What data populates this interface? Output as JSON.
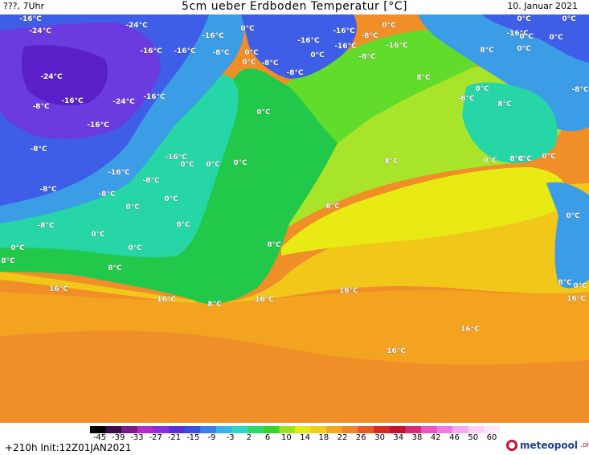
{
  "header": {
    "left": "???, 7Uhr",
    "title": "5cm ueber Erdboden Temperatur [°C]",
    "date": "10. Januar 2021"
  },
  "map": {
    "labels": [
      "-16°C",
      "-24°C",
      "-24°C",
      "-16°C",
      "-16°C",
      "0°C",
      "-16°C",
      "-16°C",
      "0°C",
      "-8°C",
      "-16°C",
      "0°C",
      "-16°C",
      "-16°C",
      "-8°C",
      "0°C",
      "-8°C",
      "0°C",
      "-8°C",
      "-16°C",
      "8°C",
      "0°C",
      "0°C",
      "-24°C",
      "-16°C",
      "-24°C",
      "-8°C",
      "-8°C",
      "0°C",
      "0°C",
      "8°C",
      "-8°C",
      "-8°C",
      "0°C",
      "0°C",
      "-16°C",
      "-16°C",
      "0°C",
      "8°C",
      "-8°C",
      "-16°C",
      "-16°C",
      "-8°C",
      "0°C",
      "0°C",
      "8°C",
      "0°C",
      "0°C",
      "-8°C",
      "0°C",
      "0°C",
      "-8°C",
      "8°C",
      "0°C",
      "-8°C",
      "0°C",
      "0°C",
      "0°C",
      "0°C",
      "8°C",
      "8°C",
      "8°C",
      "16°C",
      "16°C",
      "8°C",
      "16°C",
      "16°C",
      "8°C",
      "0°C",
      "16°C",
      "16°C",
      "16°C",
      "0°C",
      "8°C",
      "0°C"
    ],
    "colors": {
      "deep_purple": "#5a1fc8",
      "violet": "#6c3be0",
      "blue": "#3f5ee8",
      "light_blue": "#3b9de6",
      "cyan": "#2fd0d4",
      "teal": "#27d6a6",
      "green": "#22c84a",
      "light_green": "#62dc2a",
      "lime": "#a8e52a",
      "yellow": "#e9ea14",
      "gold": "#f1c719",
      "orange": "#f3a320",
      "dark_orange": "#f08e28"
    }
  },
  "colorbar": {
    "ticks": [
      "-45",
      "-39",
      "-33",
      "-27",
      "-21",
      "-15",
      "-9",
      "-3",
      "2",
      "6",
      "10",
      "14",
      "18",
      "22",
      "26",
      "30",
      "34",
      "38",
      "42",
      "46",
      "50",
      "60"
    ],
    "colors": [
      "#000000",
      "#3d0a4a",
      "#7a1a8a",
      "#b02cc8",
      "#8a2ce0",
      "#5a2fd8",
      "#3a4fe0",
      "#3c7fe8",
      "#36b4e8",
      "#2dd8c8",
      "#2cd86a",
      "#3ad22a",
      "#9ae21e",
      "#e4ea14",
      "#f1cc18",
      "#f3a820",
      "#f08628",
      "#e85a24",
      "#d82a22",
      "#c8102e",
      "#d8287a",
      "#e855c0",
      "#f07ae0",
      "#f8a8ee",
      "#fbd0f6",
      "#fde8fb"
    ]
  },
  "footer": {
    "run": "+210h  Init:12Z01JAN2021",
    "brand": "meteopool",
    "tld": ".org"
  }
}
